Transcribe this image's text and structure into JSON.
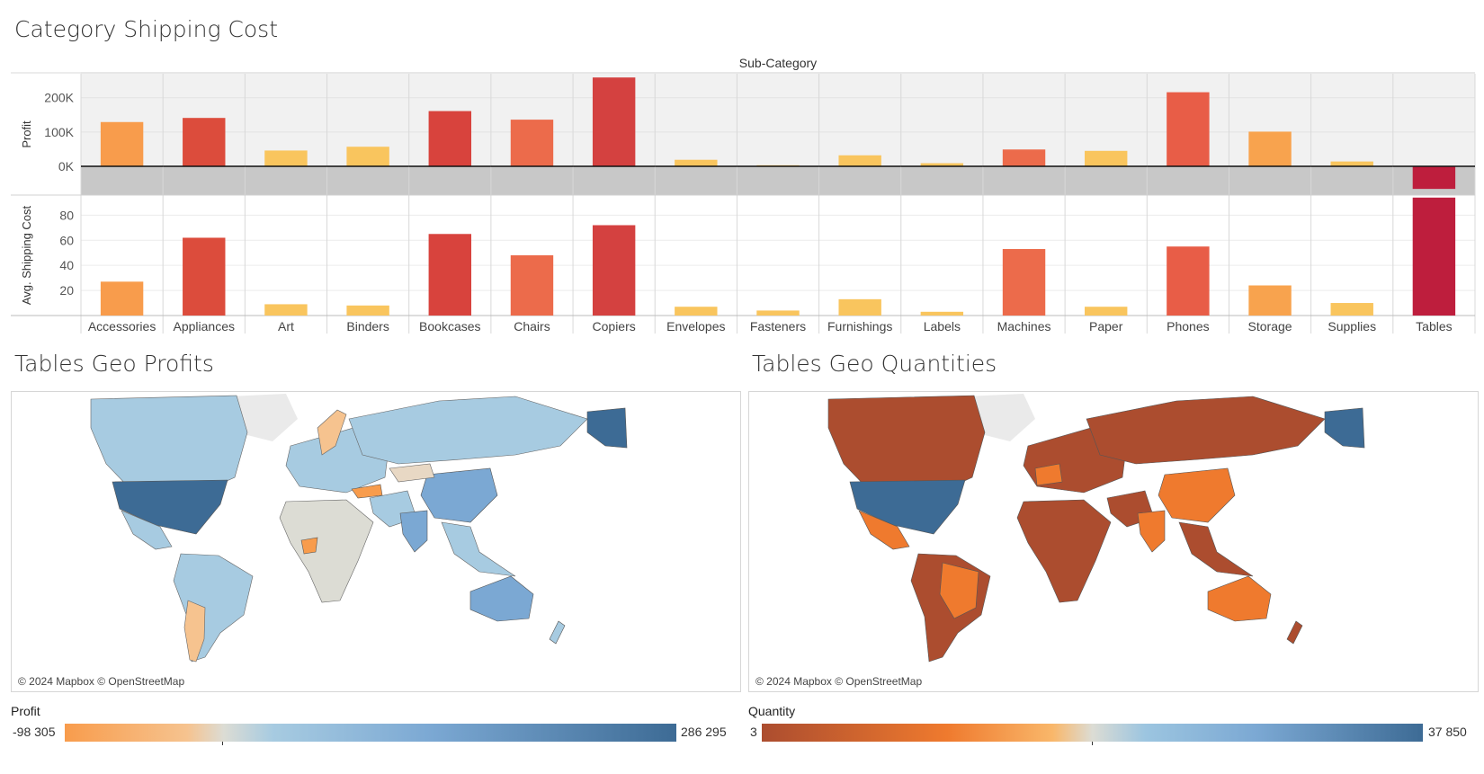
{
  "titles": {
    "main": "Category Shipping Cost",
    "geo_profits": "Tables Geo Profits",
    "geo_quantities": "Tables Geo Quantities"
  },
  "chart_data": [
    {
      "type": "bar",
      "title": "Category Shipping Cost",
      "header": "Sub-Category",
      "categories": [
        "Accessories",
        "Appliances",
        "Art",
        "Binders",
        "Bookcases",
        "Chairs",
        "Copiers",
        "Envelopes",
        "Fasteners",
        "Furnishings",
        "Labels",
        "Machines",
        "Paper",
        "Phones",
        "Storage",
        "Supplies",
        "Tables"
      ],
      "series": [
        {
          "name": "Profit",
          "values": [
            129000,
            141000,
            46000,
            57000,
            161000,
            136000,
            259000,
            19000,
            3000,
            32000,
            9000,
            49000,
            45000,
            216000,
            101000,
            14000,
            -66000
          ]
        },
        {
          "name": "Avg. Shipping Cost",
          "values": [
            27,
            62,
            9,
            8,
            65,
            48,
            72,
            7,
            4,
            13,
            3,
            53,
            7,
            55,
            24,
            10,
            94
          ]
        }
      ],
      "ylabels": [
        "Profit",
        "Avg. Shipping Cost"
      ],
      "profit_ticks": [
        "200K",
        "100K",
        "0K"
      ],
      "profit_tick_values": [
        200000,
        100000,
        0
      ],
      "profit_ylim": [
        -84000,
        270000
      ],
      "shipping_ticks": [
        "80",
        "60",
        "40",
        "20"
      ],
      "shipping_tick_values": [
        80,
        60,
        40,
        20
      ],
      "shipping_ylim": [
        0,
        96
      ],
      "colors": [
        "#f89c4c",
        "#dc4c3c",
        "#f9c55e",
        "#f9c55e",
        "#d8433d",
        "#ec6b4b",
        "#d44140",
        "#f9c55e",
        "#f9c55e",
        "#f9c55e",
        "#f9c55e",
        "#ec6b4b",
        "#f9c55e",
        "#e85d47",
        "#f8a34e",
        "#f9c55e",
        "#be1e3d"
      ]
    },
    {
      "type": "map",
      "title": "Tables Geo Profits",
      "legend_title": "Profit",
      "legend_min": "-98 305",
      "legend_max": "286 295",
      "colors": [
        "#f89c4c",
        "#dcdcd4",
        "#a7cbe1",
        "#7ba8d3",
        "#3d6b95"
      ]
    },
    {
      "type": "map",
      "title": "Tables Geo Quantities",
      "legend_title": "Quantity",
      "legend_min": "3",
      "legend_max": "37 850",
      "colors": [
        "#ac4d2f",
        "#ef7a2e",
        "#f9b76a",
        "#dcdcd4",
        "#9cc5e0",
        "#3d6b95"
      ]
    }
  ],
  "map_credit": "© 2024 Mapbox © OpenStreetMap"
}
